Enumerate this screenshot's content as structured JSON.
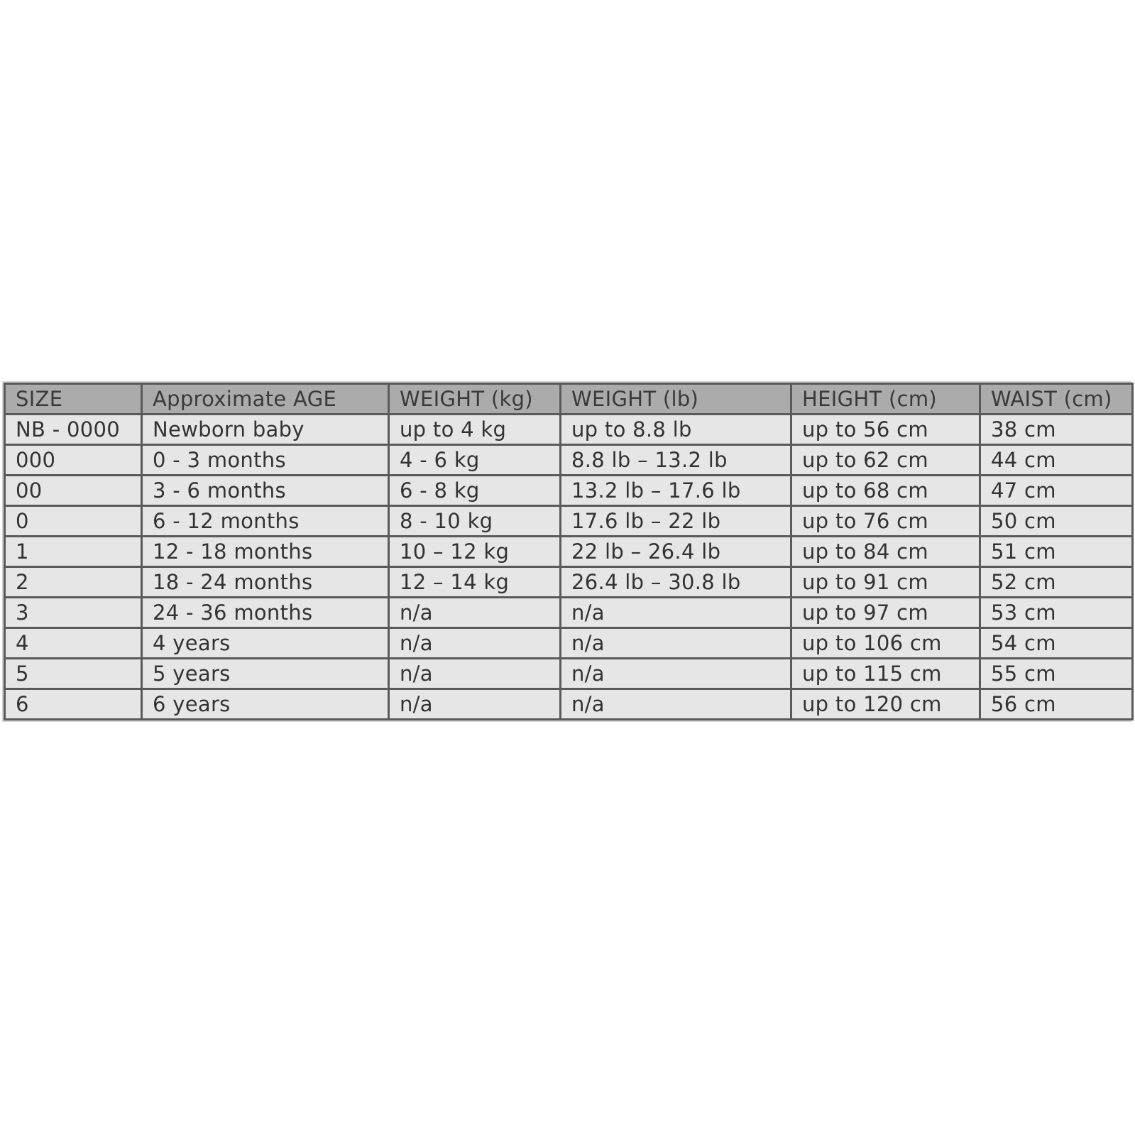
{
  "table": {
    "header": [
      "SIZE",
      "Approximate AGE",
      "WEIGHT (kg)",
      "WEIGHT (lb)",
      "HEIGHT (cm)",
      "WAIST (cm)"
    ],
    "rows": [
      [
        "NB - 0000",
        "Newborn baby",
        "up to 4 kg",
        "up to 8.8 lb",
        "up to 56 cm",
        "38 cm"
      ],
      [
        "000",
        "0 - 3 months",
        "4 - 6 kg",
        "8.8 lb – 13.2 lb",
        "up to 62 cm",
        "44 cm"
      ],
      [
        "00",
        "3 - 6 months",
        "6 - 8 kg",
        "13.2 lb – 17.6 lb",
        "up to 68 cm",
        "47 cm"
      ],
      [
        "0",
        "6 - 12 months",
        "8 - 10 kg",
        "17.6 lb – 22 lb",
        "up to 76 cm",
        "50 cm"
      ],
      [
        "1",
        "12 - 18 months",
        "10 – 12 kg",
        "22 lb – 26.4 lb",
        "up to 84 cm",
        "51 cm"
      ],
      [
        "2",
        "18 - 24 months",
        "12 – 14 kg",
        "26.4 lb – 30.8 lb",
        "up to 91 cm",
        "52 cm"
      ],
      [
        "3",
        "24 - 36 months",
        "n/a",
        "n/a",
        "up to 97 cm",
        "53 cm"
      ],
      [
        "4",
        "4 years",
        "n/a",
        "n/a",
        "up to 106 cm",
        "54 cm"
      ],
      [
        "5",
        "5 years",
        "n/a",
        "n/a",
        "up to 115 cm",
        "55 cm"
      ],
      [
        "6",
        "6 years",
        "n/a",
        "n/a",
        "up to 120 cm",
        "56 cm"
      ]
    ]
  }
}
